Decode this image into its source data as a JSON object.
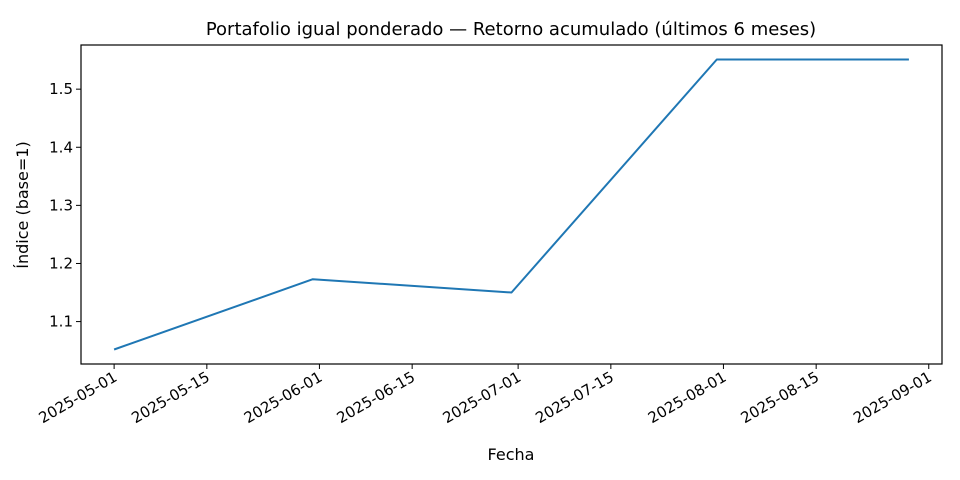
{
  "chart_data": {
    "type": "line",
    "title": "Portafolio igual ponderado — Retorno acumulado (últimos 6 meses)",
    "xlabel": "Fecha",
    "ylabel": "Índice (base=1)",
    "x_ticks": [
      "2025-05-01",
      "2025-05-15",
      "2025-06-01",
      "2025-06-15",
      "2025-07-01",
      "2025-07-15",
      "2025-08-01",
      "2025-08-15",
      "2025-09-01"
    ],
    "y_ticks": [
      "1.1",
      "1.2",
      "1.3",
      "1.4",
      "1.5"
    ],
    "xlim": [
      "2025-04-26",
      "2025-09-03"
    ],
    "ylim": [
      1.027,
      1.576
    ],
    "grid": false,
    "series": [
      {
        "color": "#1f77b4",
        "points": [
          {
            "x": "2025-05-01",
            "y": 1.052
          },
          {
            "x": "2025-05-31",
            "y": 1.173
          },
          {
            "x": "2025-06-30",
            "y": 1.15
          },
          {
            "x": "2025-07-31",
            "y": 1.551
          },
          {
            "x": "2025-08-29",
            "y": 1.551
          }
        ]
      }
    ]
  }
}
